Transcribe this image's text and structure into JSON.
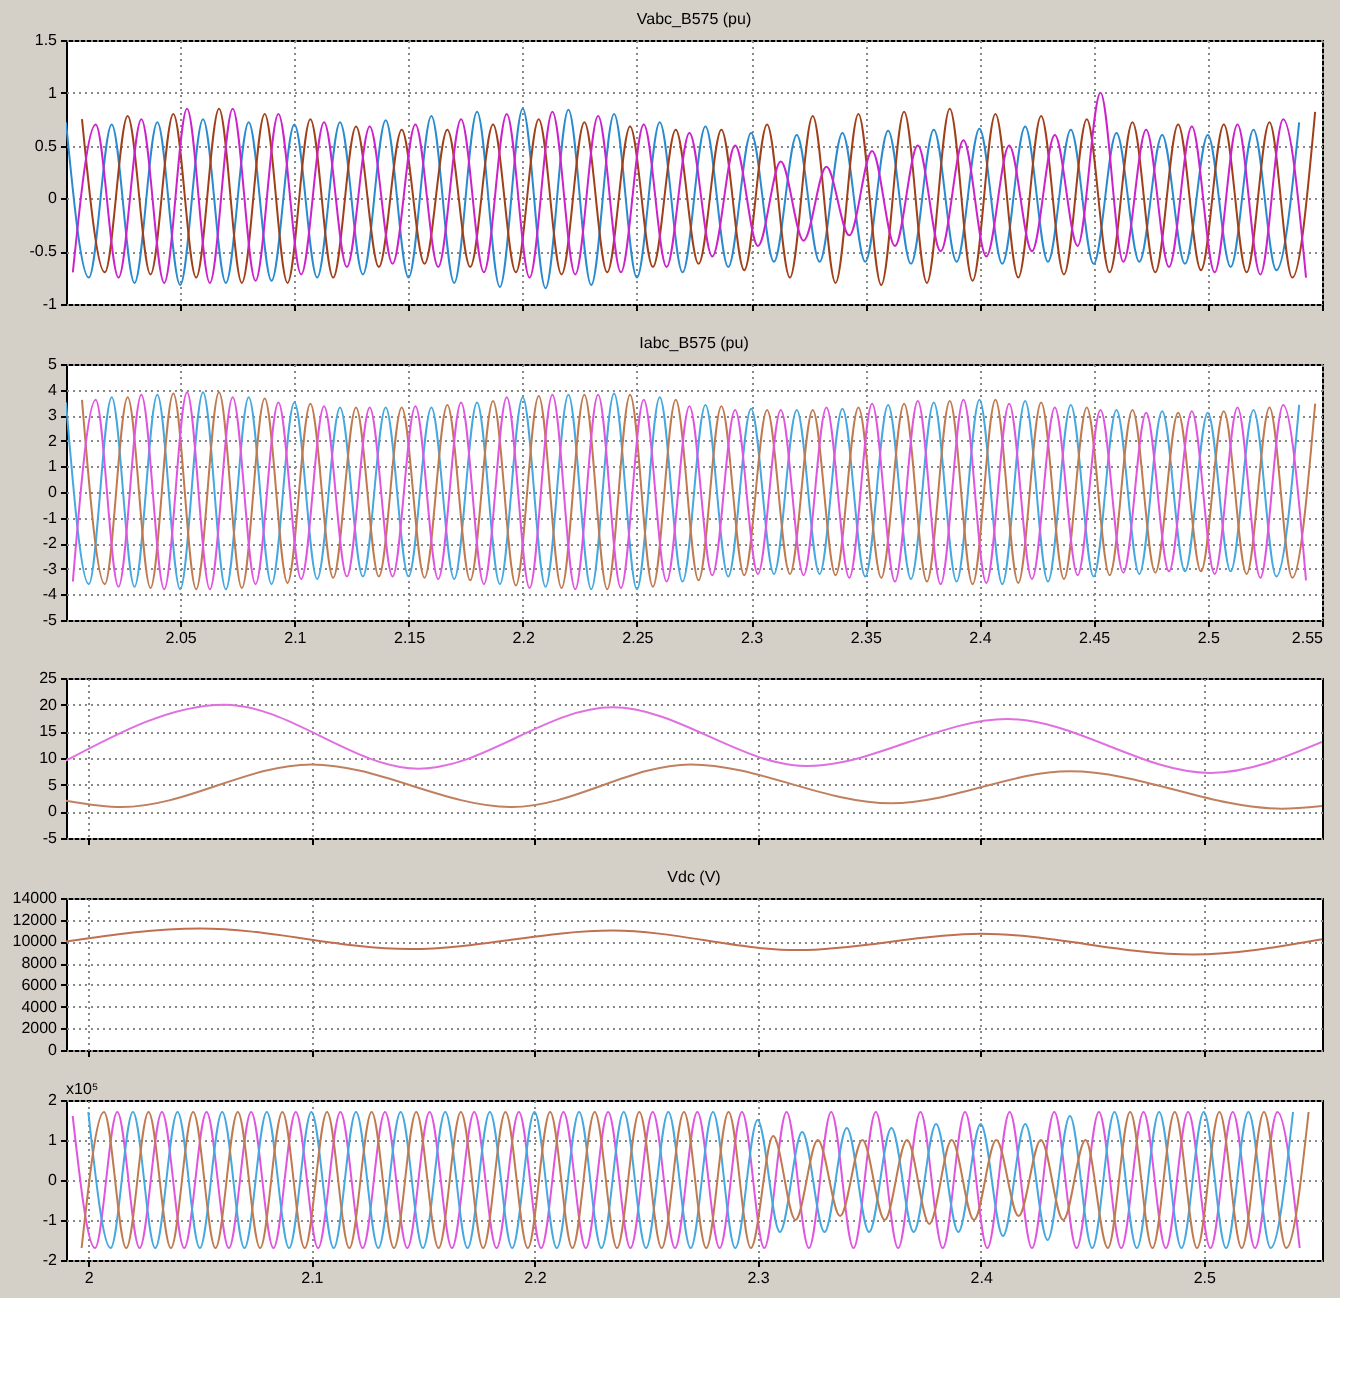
{
  "chart_data": [
    {
      "type": "line",
      "title": "Vabc_B575 (pu)",
      "xlim": [
        2.0,
        2.55
      ],
      "xticks": [
        2.05,
        2.1,
        2.15,
        2.2,
        2.25,
        2.3,
        2.35,
        2.4,
        2.45,
        2.5,
        2.55
      ],
      "ylim": [
        -1,
        1.5
      ],
      "yticks": [
        -1,
        -0.5,
        0,
        0.5,
        1,
        1.5
      ],
      "grid": true,
      "tick_labels": "y",
      "series": [
        {
          "color": "#2a8ad0",
          "x": [
            2.0,
            2.01,
            2.02,
            2.03,
            2.04,
            2.05,
            2.06,
            2.07,
            2.08,
            2.09,
            2.1,
            2.11,
            2.12,
            2.13,
            2.14,
            2.15,
            2.16,
            2.17,
            2.18,
            2.19,
            2.2,
            2.21,
            2.22,
            2.23,
            2.24,
            2.25,
            2.26,
            2.27,
            2.28,
            2.29,
            2.3,
            2.31,
            2.32,
            2.33,
            2.34,
            2.35,
            2.36,
            2.37,
            2.38,
            2.39,
            2.4,
            2.41,
            2.42,
            2.43,
            2.44,
            2.45,
            2.46,
            2.47,
            2.48,
            2.49,
            2.5,
            2.51,
            2.52,
            2.53,
            2.54
          ],
          "values": [
            0.72,
            -0.75,
            0.7,
            -0.8,
            0.72,
            -0.82,
            0.75,
            -0.8,
            0.72,
            -0.78,
            0.7,
            -0.75,
            0.72,
            -0.72,
            0.74,
            -0.75,
            0.78,
            -0.8,
            0.82,
            -0.84,
            0.85,
            -0.85,
            0.84,
            -0.82,
            0.8,
            -0.75,
            0.72,
            -0.7,
            0.68,
            -0.65,
            0.62,
            -0.6,
            0.6,
            -0.6,
            0.62,
            -0.6,
            0.64,
            -0.62,
            0.65,
            -0.6,
            0.66,
            -0.62,
            0.68,
            -0.6,
            0.65,
            -0.62,
            0.62,
            -0.6,
            0.6,
            -0.62,
            0.6,
            -0.65,
            0.65,
            -0.68,
            0.72
          ]
        },
        {
          "color": "#a0401a",
          "x": [
            2.007,
            2.017,
            2.027,
            2.037,
            2.047,
            2.057,
            2.067,
            2.077,
            2.087,
            2.097,
            2.107,
            2.117,
            2.127,
            2.137,
            2.147,
            2.157,
            2.167,
            2.177,
            2.187,
            2.197,
            2.207,
            2.217,
            2.227,
            2.237,
            2.247,
            2.257,
            2.267,
            2.277,
            2.287,
            2.297,
            2.307,
            2.317,
            2.327,
            2.337,
            2.347,
            2.357,
            2.367,
            2.377,
            2.387,
            2.397,
            2.407,
            2.417,
            2.427,
            2.437,
            2.447,
            2.457,
            2.467,
            2.477,
            2.487,
            2.497,
            2.507,
            2.517,
            2.527,
            2.537,
            2.547
          ],
          "values": [
            0.75,
            -0.7,
            0.78,
            -0.72,
            0.8,
            -0.75,
            0.85,
            -0.8,
            0.8,
            -0.8,
            0.75,
            -0.75,
            0.68,
            -0.65,
            0.65,
            -0.62,
            0.65,
            -0.65,
            0.7,
            -0.7,
            0.75,
            -0.72,
            0.72,
            -0.7,
            0.68,
            -0.65,
            0.65,
            -0.62,
            0.65,
            -0.68,
            0.7,
            -0.75,
            0.78,
            -0.8,
            0.8,
            -0.82,
            0.82,
            -0.8,
            0.85,
            -0.78,
            0.8,
            -0.75,
            0.78,
            -0.72,
            0.75,
            -0.7,
            0.72,
            -0.7,
            0.7,
            -0.68,
            0.7,
            -0.7,
            0.72,
            -0.75,
            0.82
          ]
        },
        {
          "color": "#cc22cc",
          "x": [
            2.003,
            2.013,
            2.023,
            2.033,
            2.043,
            2.053,
            2.063,
            2.073,
            2.083,
            2.093,
            2.103,
            2.113,
            2.123,
            2.133,
            2.143,
            2.153,
            2.163,
            2.173,
            2.183,
            2.193,
            2.203,
            2.213,
            2.223,
            2.233,
            2.243,
            2.253,
            2.263,
            2.273,
            2.283,
            2.293,
            2.303,
            2.313,
            2.323,
            2.333,
            2.343,
            2.353,
            2.363,
            2.373,
            2.383,
            2.393,
            2.403,
            2.413,
            2.423,
            2.433,
            2.443,
            2.453,
            2.463,
            2.473,
            2.483,
            2.493,
            2.503,
            2.513,
            2.523,
            2.533,
            2.543
          ],
          "values": [
            -0.7,
            0.7,
            -0.75,
            0.75,
            -0.8,
            0.85,
            -0.8,
            0.85,
            -0.78,
            0.8,
            -0.72,
            0.72,
            -0.65,
            0.68,
            -0.62,
            0.7,
            -0.65,
            0.75,
            -0.7,
            0.8,
            -0.75,
            0.82,
            -0.72,
            0.78,
            -0.7,
            0.7,
            -0.65,
            0.62,
            -0.55,
            0.5,
            -0.45,
            0.35,
            -0.4,
            0.3,
            -0.35,
            0.45,
            -0.45,
            0.5,
            -0.5,
            0.55,
            -0.55,
            0.5,
            -0.5,
            0.6,
            -0.45,
            1.0,
            -0.6,
            0.65,
            -0.65,
            0.68,
            -0.7,
            0.7,
            -0.72,
            0.75,
            -0.75
          ]
        }
      ]
    },
    {
      "type": "line",
      "title": "Iabc_B575 (pu)",
      "xlim": [
        2.0,
        2.55
      ],
      "xticks": [
        2.05,
        2.1,
        2.15,
        2.2,
        2.25,
        2.3,
        2.35,
        2.4,
        2.45,
        2.5,
        2.55
      ],
      "ylim": [
        -5,
        5
      ],
      "yticks": [
        -5,
        -4,
        -3,
        -2,
        -1,
        0,
        1,
        2,
        3,
        4,
        5
      ],
      "grid": true,
      "series": [
        {
          "color": "#45a8e0",
          "x": [
            2.0,
            2.01,
            2.02,
            2.03,
            2.04,
            2.05,
            2.06,
            2.07,
            2.08,
            2.09,
            2.1,
            2.11,
            2.12,
            2.13,
            2.14,
            2.15,
            2.16,
            2.17,
            2.18,
            2.19,
            2.2,
            2.21,
            2.22,
            2.23,
            2.24,
            2.25,
            2.26,
            2.27,
            2.28,
            2.29,
            2.3,
            2.31,
            2.32,
            2.33,
            2.34,
            2.35,
            2.36,
            2.37,
            2.38,
            2.39,
            2.4,
            2.41,
            2.42,
            2.43,
            2.44,
            2.45,
            2.46,
            2.47,
            2.48,
            2.49,
            2.5,
            2.51,
            2.52,
            2.53,
            2.54
          ],
          "values": [
            3.5,
            -3.6,
            3.7,
            -3.7,
            3.8,
            -3.8,
            3.9,
            -3.8,
            3.7,
            -3.6,
            3.5,
            -3.4,
            3.3,
            -3.3,
            3.3,
            -3.3,
            3.3,
            -3.4,
            3.5,
            -3.6,
            3.7,
            -3.7,
            3.8,
            -3.8,
            3.85,
            -3.8,
            3.7,
            -3.5,
            3.4,
            -3.3,
            3.25,
            -3.2,
            3.2,
            -3.2,
            3.25,
            -3.3,
            3.4,
            -3.4,
            3.5,
            -3.5,
            3.6,
            -3.6,
            3.55,
            -3.5,
            3.4,
            -3.3,
            3.2,
            -3.2,
            3.15,
            -3.1,
            3.1,
            -3.1,
            3.2,
            -3.3,
            3.4
          ]
        },
        {
          "color": "#c07a50",
          "x": [
            2.007,
            2.017,
            2.027,
            2.037,
            2.047,
            2.057,
            2.067,
            2.077,
            2.087,
            2.097,
            2.107,
            2.117,
            2.127,
            2.137,
            2.147,
            2.157,
            2.167,
            2.177,
            2.187,
            2.197,
            2.207,
            2.217,
            2.227,
            2.237,
            2.247,
            2.257,
            2.267,
            2.277,
            2.287,
            2.297,
            2.307,
            2.317,
            2.327,
            2.337,
            2.347,
            2.357,
            2.367,
            2.377,
            2.387,
            2.397,
            2.407,
            2.417,
            2.427,
            2.437,
            2.447,
            2.457,
            2.467,
            2.477,
            2.487,
            2.497,
            2.507,
            2.517,
            2.527,
            2.537,
            2.547
          ],
          "values": [
            3.6,
            -3.6,
            3.7,
            -3.75,
            3.85,
            -3.8,
            3.9,
            -3.75,
            3.65,
            -3.55,
            3.45,
            -3.35,
            3.3,
            -3.3,
            3.3,
            -3.35,
            3.4,
            -3.45,
            3.55,
            -3.65,
            3.75,
            -3.75,
            3.8,
            -3.8,
            3.8,
            -3.7,
            3.6,
            -3.45,
            3.35,
            -3.25,
            3.2,
            -3.2,
            3.2,
            -3.25,
            3.3,
            -3.35,
            3.45,
            -3.5,
            3.55,
            -3.6,
            3.6,
            -3.55,
            3.5,
            -3.4,
            3.3,
            -3.25,
            3.2,
            -3.15,
            3.1,
            -3.1,
            3.15,
            -3.2,
            3.3,
            -3.35,
            3.45
          ]
        },
        {
          "color": "#e055e0",
          "x": [
            2.003,
            2.013,
            2.023,
            2.033,
            2.043,
            2.053,
            2.063,
            2.073,
            2.083,
            2.093,
            2.103,
            2.113,
            2.123,
            2.133,
            2.143,
            2.153,
            2.163,
            2.173,
            2.183,
            2.193,
            2.203,
            2.213,
            2.223,
            2.233,
            2.243,
            2.253,
            2.263,
            2.273,
            2.283,
            2.293,
            2.303,
            2.313,
            2.323,
            2.333,
            2.343,
            2.353,
            2.363,
            2.373,
            2.383,
            2.393,
            2.403,
            2.413,
            2.423,
            2.433,
            2.443,
            2.453,
            2.463,
            2.473,
            2.483,
            2.493,
            2.503,
            2.513,
            2.523,
            2.533,
            2.543
          ],
          "values": [
            -3.5,
            3.6,
            -3.7,
            3.8,
            -3.8,
            3.9,
            -3.8,
            3.7,
            -3.6,
            3.5,
            -3.4,
            3.35,
            -3.3,
            3.3,
            -3.3,
            3.35,
            -3.4,
            3.5,
            -3.6,
            3.7,
            -3.75,
            3.8,
            -3.8,
            3.8,
            -3.75,
            3.6,
            -3.5,
            3.35,
            -3.25,
            3.2,
            -3.2,
            3.2,
            -3.25,
            3.3,
            -3.35,
            3.45,
            -3.5,
            3.55,
            -3.6,
            3.6,
            -3.55,
            3.45,
            -3.4,
            3.3,
            -3.25,
            3.2,
            -3.15,
            3.1,
            -3.1,
            3.15,
            -3.2,
            3.3,
            -3.35,
            3.4,
            -3.45
          ]
        }
      ]
    },
    {
      "type": "line",
      "xlim": [
        1.99,
        2.553
      ],
      "xticks": [
        2,
        2.1,
        2.2,
        2.3,
        2.4,
        2.5
      ],
      "ylim": [
        -5,
        25
      ],
      "yticks": [
        -5,
        0,
        5,
        10,
        15,
        20,
        25
      ],
      "grid": true,
      "tick_labels": "y",
      "series": [
        {
          "color": "#e070e0",
          "x": [
            1.99,
            2.061,
            2.148,
            2.235,
            2.322,
            2.412,
            2.503,
            2.553
          ],
          "values": [
            9.5,
            20,
            8,
            19.5,
            8.5,
            17.3,
            7.2,
            13
          ]
        },
        {
          "color": "#c08060",
          "x": [
            1.99,
            2.015,
            2.1,
            2.19,
            2.27,
            2.36,
            2.44,
            2.535,
            2.553
          ],
          "values": [
            2,
            0.8,
            8.8,
            0.8,
            8.8,
            1.5,
            7.5,
            0.5,
            1
          ]
        }
      ]
    },
    {
      "type": "line",
      "title": "Vdc (V)",
      "xlim": [
        1.99,
        2.553
      ],
      "xticks": [
        2,
        2.1,
        2.2,
        2.3,
        2.4,
        2.5
      ],
      "ylim": [
        0,
        14000
      ],
      "yticks": [
        0,
        2000,
        4000,
        6000,
        8000,
        10000,
        12000,
        14000
      ],
      "grid": true,
      "tick_labels": "y",
      "series": [
        {
          "color": "#c07050",
          "x": [
            1.99,
            2.05,
            2.144,
            2.235,
            2.318,
            2.4,
            2.495,
            2.553
          ],
          "values": [
            10000,
            11200,
            9300,
            11000,
            9200,
            10700,
            8800,
            10200
          ]
        }
      ]
    },
    {
      "type": "line",
      "annotations": [
        "x10⁵"
      ],
      "xlim": [
        1.99,
        2.553
      ],
      "xticks": [
        2,
        2.1,
        2.2,
        2.3,
        2.4,
        2.5
      ],
      "ylim": [
        -2,
        2
      ],
      "yticks": [
        -2,
        -1,
        0,
        1,
        2
      ],
      "grid": true,
      "series": [
        {
          "color": "#e055e0",
          "x": [
            1.993,
            2.003,
            2.013,
            2.023,
            2.033,
            2.043,
            2.053,
            2.063,
            2.073,
            2.083,
            2.093,
            2.103,
            2.113,
            2.123,
            2.133,
            2.143,
            2.153,
            2.163,
            2.173,
            2.183,
            2.193,
            2.203,
            2.213,
            2.223,
            2.233,
            2.243,
            2.253,
            2.263,
            2.273,
            2.283,
            2.293,
            2.303,
            2.313,
            2.323,
            2.333,
            2.343,
            2.353,
            2.363,
            2.373,
            2.383,
            2.393,
            2.403,
            2.413,
            2.423,
            2.433,
            2.443,
            2.453,
            2.463,
            2.473,
            2.483,
            2.493,
            2.503,
            2.513,
            2.523,
            2.533,
            2.543
          ],
          "values": [
            1.6,
            -1.7,
            1.7,
            -1.7,
            1.7,
            -1.7,
            1.7,
            -1.7,
            1.7,
            -1.7,
            1.7,
            -1.7,
            1.7,
            -1.7,
            1.7,
            -1.7,
            1.7,
            -1.7,
            1.7,
            -1.7,
            1.7,
            -1.7,
            1.7,
            -1.7,
            1.7,
            -1.7,
            1.7,
            -1.7,
            1.7,
            -1.7,
            1.7,
            -1.7,
            1.7,
            -1.7,
            1.7,
            -1.7,
            1.7,
            -1.7,
            1.7,
            -1.7,
            1.7,
            -1.7,
            1.7,
            -1.7,
            1.7,
            -1.7,
            1.7,
            -1.7,
            1.7,
            -1.7,
            1.7,
            -1.7,
            1.7,
            -1.7,
            1.7,
            -1.7
          ]
        },
        {
          "color": "#45a8e0",
          "x": [
            2.0,
            2.01,
            2.02,
            2.03,
            2.04,
            2.05,
            2.06,
            2.07,
            2.08,
            2.09,
            2.1,
            2.11,
            2.12,
            2.13,
            2.14,
            2.15,
            2.16,
            2.17,
            2.18,
            2.19,
            2.2,
            2.21,
            2.22,
            2.23,
            2.24,
            2.25,
            2.26,
            2.27,
            2.28,
            2.29,
            2.3,
            2.31,
            2.32,
            2.33,
            2.34,
            2.35,
            2.36,
            2.37,
            2.38,
            2.39,
            2.4,
            2.41,
            2.42,
            2.43,
            2.44,
            2.45,
            2.46,
            2.47,
            2.48,
            2.49,
            2.5,
            2.51,
            2.52,
            2.53,
            2.54
          ],
          "values": [
            1.7,
            -1.7,
            1.7,
            -1.7,
            1.7,
            -1.7,
            1.7,
            -1.7,
            1.7,
            -1.7,
            1.7,
            -1.7,
            1.7,
            -1.7,
            1.7,
            -1.7,
            1.7,
            -1.7,
            1.7,
            -1.7,
            1.7,
            -1.7,
            1.7,
            -1.7,
            1.7,
            -1.7,
            1.7,
            -1.7,
            1.7,
            -1.7,
            1.5,
            -1.3,
            1.2,
            -1.3,
            1.3,
            -1.3,
            1.3,
            -1.3,
            1.4,
            -1.3,
            1.4,
            -1.4,
            1.4,
            -1.5,
            1.6,
            -1.7,
            1.7,
            -1.7,
            1.7,
            -1.7,
            1.7,
            -1.7,
            1.7,
            -1.7,
            1.7
          ]
        },
        {
          "color": "#c07a50",
          "x": [
            1.997,
            2.007,
            2.017,
            2.027,
            2.037,
            2.047,
            2.057,
            2.067,
            2.077,
            2.087,
            2.097,
            2.107,
            2.117,
            2.127,
            2.137,
            2.147,
            2.157,
            2.167,
            2.177,
            2.187,
            2.197,
            2.207,
            2.217,
            2.227,
            2.237,
            2.247,
            2.257,
            2.267,
            2.277,
            2.287,
            2.297,
            2.307,
            2.317,
            2.327,
            2.337,
            2.347,
            2.357,
            2.367,
            2.377,
            2.387,
            2.397,
            2.407,
            2.417,
            2.427,
            2.437,
            2.447,
            2.457,
            2.467,
            2.477,
            2.487,
            2.497,
            2.507,
            2.517,
            2.527,
            2.537,
            2.547
          ],
          "values": [
            -1.7,
            1.7,
            -1.7,
            1.7,
            -1.7,
            1.7,
            -1.7,
            1.7,
            -1.7,
            1.7,
            -1.7,
            1.7,
            -1.7,
            1.7,
            -1.7,
            1.7,
            -1.7,
            1.7,
            -1.7,
            1.7,
            -1.7,
            1.7,
            -1.7,
            1.7,
            -1.7,
            1.7,
            -1.7,
            1.7,
            -1.7,
            1.7,
            -1.7,
            1.1,
            -1.0,
            1.0,
            -0.9,
            1.0,
            -1.0,
            1.0,
            -1.1,
            1.0,
            -1.0,
            1.0,
            -0.9,
            1.0,
            -1.0,
            1.0,
            -1.7,
            1.7,
            -1.7,
            1.7,
            -1.7,
            1.7,
            -1.7,
            1.7,
            -1.7,
            1.7
          ]
        }
      ]
    }
  ]
}
